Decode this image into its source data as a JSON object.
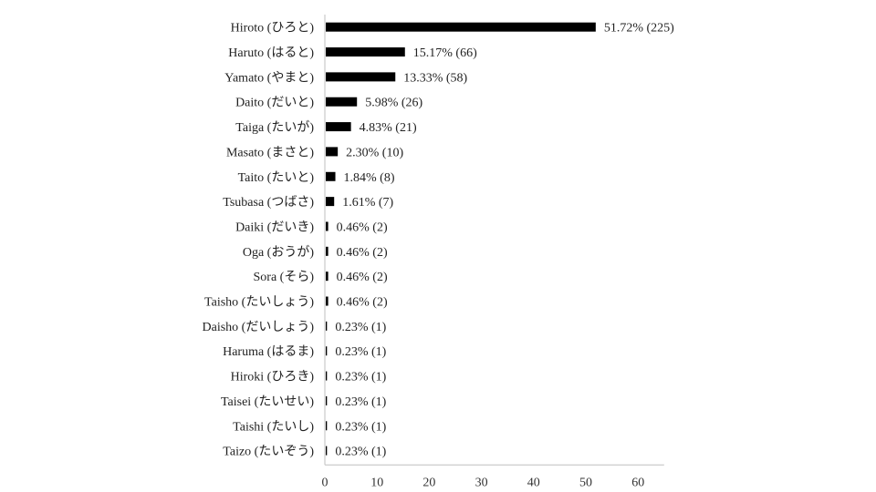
{
  "chart_data": {
    "type": "bar",
    "orientation": "horizontal",
    "categories": [
      "Hiroto (ひろと)",
      "Haruto (はると)",
      "Yamato (やまと)",
      "Daito (だいと)",
      "Taiga (たいが)",
      "Masato (まさと)",
      "Taito (たいと)",
      "Tsubasa (つばさ)",
      "Daiki (だいき)",
      "Oga (おうが)",
      "Sora (そら)",
      "Taisho (たいしょう)",
      "Daisho (だいしょう)",
      "Haruma (はるま)",
      "Hiroki (ひろき)",
      "Taisei (たいせい)",
      "Taishi (たいし)",
      "Taizo (たいぞう)"
    ],
    "values": [
      51.72,
      15.17,
      13.33,
      5.98,
      4.83,
      2.3,
      1.84,
      1.61,
      0.46,
      0.46,
      0.46,
      0.46,
      0.23,
      0.23,
      0.23,
      0.23,
      0.23,
      0.23
    ],
    "data_labels": [
      "51.72% (225)",
      "15.17% (66)",
      "13.33% (58)",
      "5.98% (26)",
      "4.83% (21)",
      "2.30% (10)",
      "1.84% (8)",
      "1.61% (7)",
      "0.46% (2)",
      "0.46% (2)",
      "0.46% (2)",
      "0.46% (2)",
      "0.23% (1)",
      "0.23% (1)",
      "0.23% (1)",
      "0.23% (1)",
      "0.23% (1)",
      "0.23% (1)"
    ],
    "xlim": [
      0,
      65
    ],
    "xticks": [
      "0",
      "10",
      "20",
      "30",
      "40",
      "50",
      "60"
    ],
    "grid": false,
    "bar_color": "#000000"
  }
}
